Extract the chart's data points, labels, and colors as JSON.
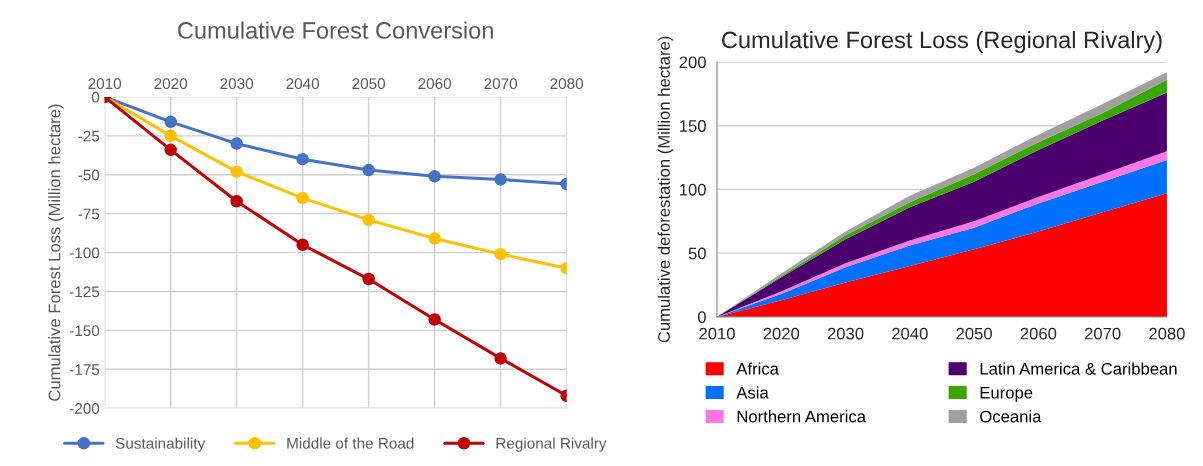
{
  "chart_data": [
    {
      "type": "line",
      "title": "Cumulative Forest Conversion",
      "ylabel": "Cumulative Forest Loss (Million hectare)",
      "x": [
        2010,
        2020,
        2030,
        2040,
        2050,
        2060,
        2070,
        2080
      ],
      "series": [
        {
          "name": "Sustainability",
          "color": "#4472c4",
          "values": [
            0,
            -16,
            -30,
            -40,
            -47,
            -51,
            -53,
            -56
          ]
        },
        {
          "name": "Middle of the Road",
          "color": "#ffc000",
          "values": [
            0,
            -25,
            -48,
            -65,
            -79,
            -91,
            -101,
            -110
          ]
        },
        {
          "name": "Regional Rivalry",
          "color": "#c00000",
          "values": [
            0,
            -34,
            -67,
            -95,
            -117,
            -143,
            -168,
            -192
          ]
        }
      ],
      "xlim": [
        2010,
        2080
      ],
      "xticks": [
        2010,
        2020,
        2030,
        2040,
        2050,
        2060,
        2070,
        2080
      ],
      "ylim": [
        -200,
        0
      ],
      "yticks": [
        -200,
        -175,
        -150,
        -125,
        -100,
        -75,
        -50,
        -25,
        0
      ],
      "grid": true,
      "legend": "bottom",
      "marker": "circle",
      "line_style": "solid"
    },
    {
      "type": "area",
      "title": "Cumulative Forest Loss (Regional Rivalry)",
      "ylabel": "Cumulative deforestation (Million hectare)",
      "x": [
        2010,
        2020,
        2030,
        2040,
        2050,
        2060,
        2070,
        2080
      ],
      "stacked": true,
      "series": [
        {
          "name": "Africa",
          "color": "#ff0000",
          "values": [
            0,
            13,
            27,
            40,
            53,
            67,
            82,
            97
          ]
        },
        {
          "name": "Asia",
          "color": "#0070ff",
          "values": [
            0,
            5,
            12,
            16,
            17,
            22,
            24,
            26
          ]
        },
        {
          "name": "Northern America",
          "color": "#ff77e6",
          "values": [
            0,
            2,
            3,
            4,
            5,
            5,
            6,
            7
          ]
        },
        {
          "name": "Latin America & Caribbean",
          "color": "#4b006e",
          "values": [
            0,
            11,
            19,
            26,
            31,
            37,
            42,
            46
          ]
        },
        {
          "name": "Europe",
          "color": "#38a800",
          "values": [
            0,
            1,
            3,
            4,
            6,
            6,
            6,
            10
          ]
        },
        {
          "name": "Oceania",
          "color": "#a0a0a0",
          "values": [
            0,
            2,
            3,
            5,
            5,
            6,
            7,
            6
          ]
        }
      ],
      "xlim": [
        2010,
        2080
      ],
      "xticks": [
        2010,
        2020,
        2030,
        2040,
        2050,
        2060,
        2070,
        2080
      ],
      "ylim": [
        0,
        200
      ],
      "yticks": [
        0,
        50,
        100,
        150,
        200
      ],
      "grid": "y",
      "legend": "bottom"
    }
  ]
}
